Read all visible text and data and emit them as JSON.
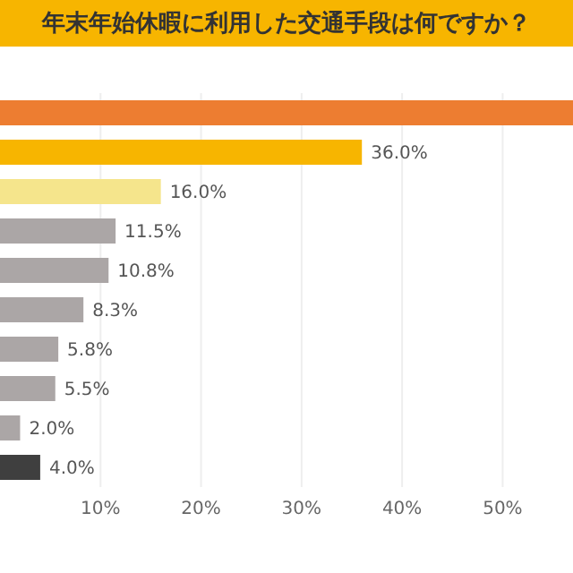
{
  "chart_data": {
    "type": "bar",
    "orientation": "horizontal",
    "title": "年末年始休暇に利用した交通手段は何ですか？",
    "categories": [
      null,
      null,
      null,
      null,
      null,
      null,
      null,
      null,
      null,
      null
    ],
    "values": [
      57,
      36.0,
      16.0,
      11.5,
      10.8,
      8.3,
      5.8,
      5.5,
      2.0,
      4.0
    ],
    "colors": [
      "#ed7d31",
      "#f7b500",
      "#f5e58c",
      "#aba6a6",
      "#aba6a6",
      "#aba6a6",
      "#aba6a6",
      "#aba6a6",
      "#aba6a6",
      "#3f3f3f"
    ],
    "value_labels": [
      null,
      "36.0%",
      "16.0%",
      "11.5%",
      "10.8%",
      "8.3%",
      "5.8%",
      "5.5%",
      "2.0%",
      "4.0%"
    ],
    "xlim": [
      0,
      57
    ],
    "xticks": [
      {
        "value": 10,
        "label": "10%"
      },
      {
        "value": 20,
        "label": "20%"
      },
      {
        "value": 30,
        "label": "30%"
      },
      {
        "value": 40,
        "label": "40%"
      },
      {
        "value": 50,
        "label": "50%"
      }
    ],
    "grid": "x",
    "tick_labels": "x",
    "legend": false
  }
}
